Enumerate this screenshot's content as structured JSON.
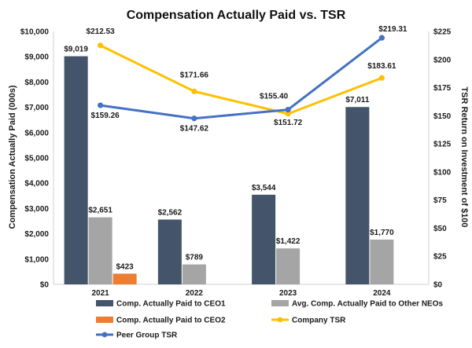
{
  "chart_data": {
    "type": "bar+line",
    "title": "Compensation Actually Paid vs. TSR",
    "categories": [
      "2021",
      "2022",
      "2023",
      "2024"
    ],
    "ylabel_left": "Compensation Actually Paid (000s)",
    "ylabel_right": "TSR Return on Investment of $100",
    "ylim_left": [
      0,
      10000
    ],
    "ylim_right": [
      0,
      225
    ],
    "yticks_left": [
      "$0",
      "$1,000",
      "$2,000",
      "$3,000",
      "$4,000",
      "$5,000",
      "$6,000",
      "$7,000",
      "$8,000",
      "$9,000",
      "$10,000"
    ],
    "yticks_right": [
      "$0",
      "$25",
      "$50",
      "$75",
      "$100",
      "$125",
      "$150",
      "$175",
      "$200",
      "$225"
    ],
    "bar_series": [
      {
        "name": "Comp. Actually Paid to CEO1",
        "color": "#44546a",
        "values": [
          9019,
          2562,
          3544,
          7011
        ],
        "labels": [
          "$9,019",
          "$2,562",
          "$3,544",
          "$7,011"
        ]
      },
      {
        "name": "Avg. Comp. Actually Paid to Other NEOs",
        "color": "#a5a5a5",
        "values": [
          2651,
          789,
          1422,
          1770
        ],
        "labels": [
          "$2,651",
          "$789",
          "$1,422",
          "$1,770"
        ]
      },
      {
        "name": "Comp. Actually Paid to CEO2",
        "color": "#ed7d31",
        "values": [
          423,
          null,
          null,
          null
        ],
        "labels": [
          "$423",
          null,
          null,
          null
        ]
      }
    ],
    "line_series": [
      {
        "name": "Company TSR",
        "color": "#ffc000",
        "values": [
          212.53,
          171.66,
          151.72,
          183.61
        ],
        "labels": [
          "$212.53",
          "$171.66",
          "$151.72",
          "$183.61"
        ]
      },
      {
        "name": "Peer Group TSR",
        "color": "#4472c4",
        "values": [
          159.26,
          147.62,
          155.4,
          219.31
        ],
        "labels": [
          "$159.26",
          "$147.62",
          "$155.40",
          "$219.31"
        ]
      }
    ],
    "legend": [
      {
        "name": "Comp. Actually Paid to CEO1",
        "kind": "bar",
        "color": "#44546a"
      },
      {
        "name": "Avg. Comp. Actually Paid to Other NEOs",
        "kind": "bar",
        "color": "#a5a5a5"
      },
      {
        "name": "Comp. Actually Paid to CEO2",
        "kind": "bar",
        "color": "#ed7d31"
      },
      {
        "name": "Company TSR",
        "kind": "line",
        "color": "#ffc000"
      },
      {
        "name": "Peer Group TSR",
        "kind": "line",
        "color": "#4472c4"
      }
    ],
    "legend_position": "bottom"
  }
}
